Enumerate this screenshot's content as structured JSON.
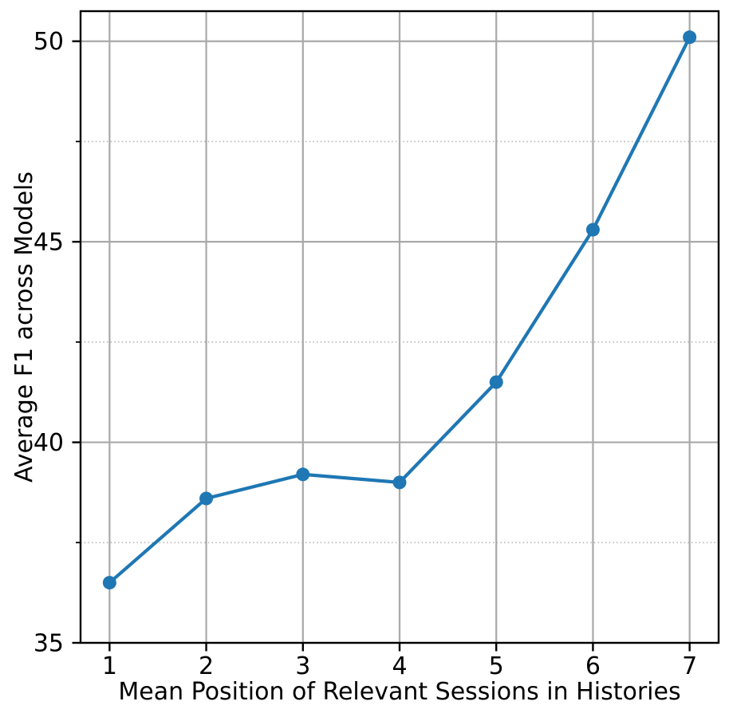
{
  "figure": {
    "background": "#ffffff"
  },
  "chart_data": {
    "type": "line",
    "title": "",
    "xlabel": "Mean Position of Relevant Sessions in Histories",
    "ylabel": "Average F1 across Models",
    "x": [
      1,
      2,
      3,
      4,
      5,
      6,
      7
    ],
    "series": [
      {
        "name": "Average F1 across Models",
        "values": [
          36.5,
          38.6,
          39.2,
          39.0,
          41.5,
          45.3,
          50.1
        ],
        "color": "#1f77b4",
        "marker": "circle"
      }
    ],
    "xlim": [
      0.7,
      7.3
    ],
    "ylim": [
      35,
      50.75
    ],
    "xticks": [
      1,
      2,
      3,
      4,
      5,
      6,
      7
    ],
    "xtick_labels": [
      "1",
      "2",
      "3",
      "4",
      "5",
      "6",
      "7"
    ],
    "yticks": [
      35,
      40,
      45,
      50
    ],
    "ytick_labels": [
      "35",
      "40",
      "45",
      "50"
    ],
    "yticks_minor": [
      37.5,
      42.5,
      47.5
    ],
    "grid": {
      "major": "solid",
      "minor": "dotted-horizontal",
      "major_color": "#a9a9a9",
      "minor_color": "#b5b5b5"
    },
    "axis_color": "#000000",
    "legend": "none"
  }
}
